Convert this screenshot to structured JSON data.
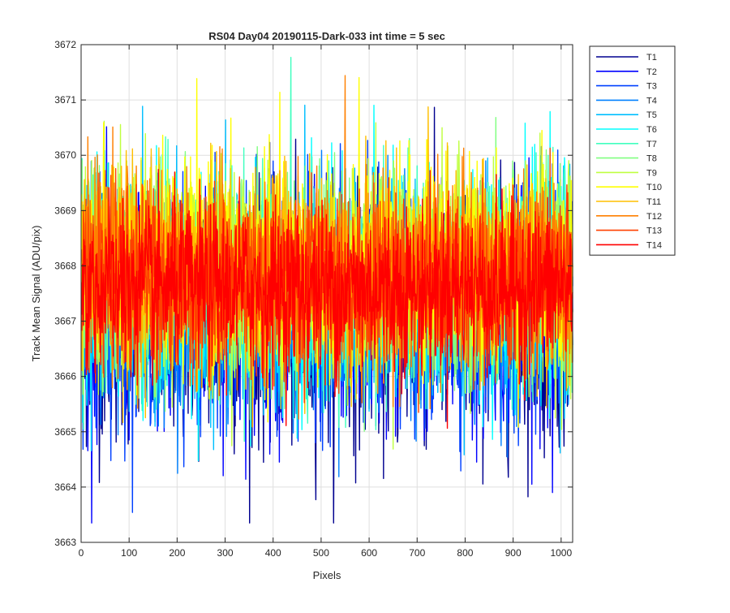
{
  "chart_data": {
    "type": "line",
    "title": "RS04 Day04 20190115-Dark-033 int time = 5 sec",
    "xlabel": "Pixels",
    "ylabel": "Track Mean Signal (ADU/pix)",
    "xlim": [
      0,
      1024
    ],
    "ylim": [
      3663,
      3672
    ],
    "xticks": [
      0,
      100,
      200,
      300,
      400,
      500,
      600,
      700,
      800,
      900,
      1000
    ],
    "yticks": [
      3663,
      3664,
      3665,
      3666,
      3667,
      3668,
      3669,
      3670,
      3671,
      3672
    ],
    "grid": true,
    "legend_position": "outside-right-top",
    "series": [
      {
        "name": "T1",
        "color": "#00008f",
        "mean": 3667.1,
        "noise": 1.15
      },
      {
        "name": "T2",
        "color": "#0000ff",
        "mean": 3667.2,
        "noise": 1.05
      },
      {
        "name": "T3",
        "color": "#0040ff",
        "mean": 3667.3,
        "noise": 1.0
      },
      {
        "name": "T4",
        "color": "#0080ff",
        "mean": 3667.4,
        "noise": 0.95
      },
      {
        "name": "T5",
        "color": "#00bfff",
        "mean": 3667.5,
        "noise": 0.95
      },
      {
        "name": "T6",
        "color": "#00ffff",
        "mean": 3667.6,
        "noise": 1.0
      },
      {
        "name": "T7",
        "color": "#40ffbf",
        "mean": 3667.7,
        "noise": 0.95
      },
      {
        "name": "T8",
        "color": "#80ff80",
        "mean": 3667.8,
        "noise": 0.95
      },
      {
        "name": "T9",
        "color": "#bfff40",
        "mean": 3667.9,
        "noise": 0.95
      },
      {
        "name": "T10",
        "color": "#ffff00",
        "mean": 3668.0,
        "noise": 0.95
      },
      {
        "name": "T11",
        "color": "#ffbf00",
        "mean": 3667.9,
        "noise": 0.9
      },
      {
        "name": "T12",
        "color": "#ff8000",
        "mean": 3667.8,
        "noise": 0.85
      },
      {
        "name": "T13",
        "color": "#ff4000",
        "mean": 3667.7,
        "noise": 0.8
      },
      {
        "name": "T14",
        "color": "#ff0000",
        "mean": 3667.6,
        "noise": 0.75
      }
    ]
  }
}
